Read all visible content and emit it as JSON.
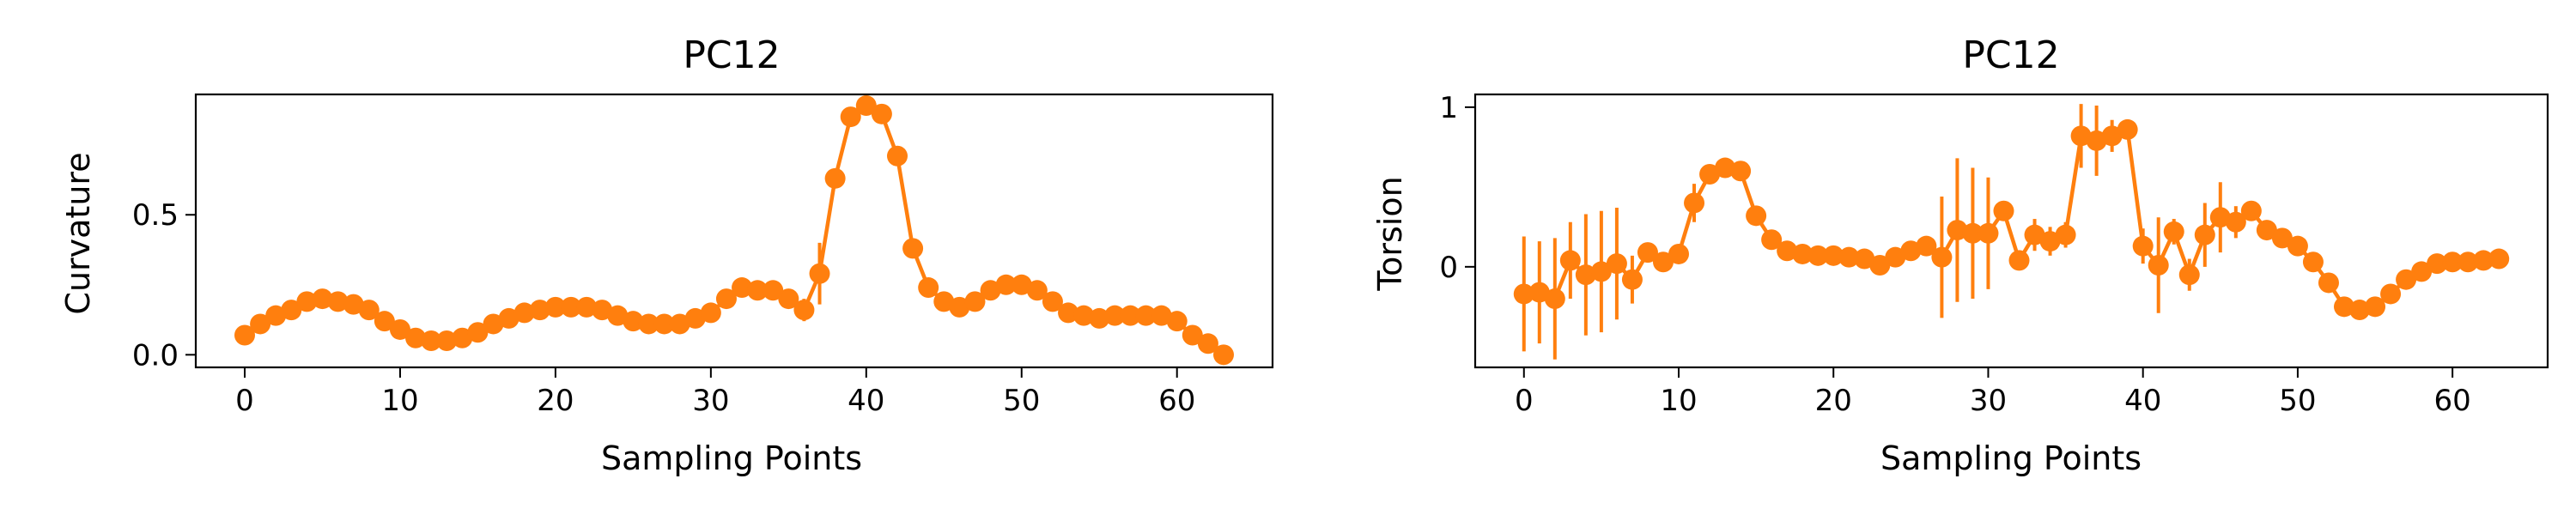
{
  "colors": {
    "series": "#ff7f0e",
    "axes": "#000000",
    "background": "#ffffff"
  },
  "chart_data": [
    {
      "type": "line",
      "title": "PC12",
      "xlabel": "Sampling Points",
      "ylabel": "Curvature",
      "xlim": [
        -3.15,
        66.15
      ],
      "ylim": [
        -0.045,
        0.93
      ],
      "xticks": [
        0,
        10,
        20,
        30,
        40,
        50,
        60
      ],
      "yticks": [
        0.0,
        0.5
      ],
      "ytick_labels": [
        "0.0",
        "0.5"
      ],
      "grid": false,
      "marker": "circle",
      "x": [
        0,
        1,
        2,
        3,
        4,
        5,
        6,
        7,
        8,
        9,
        10,
        11,
        12,
        13,
        14,
        15,
        16,
        17,
        18,
        19,
        20,
        21,
        22,
        23,
        24,
        25,
        26,
        27,
        28,
        29,
        30,
        31,
        32,
        33,
        34,
        35,
        36,
        37,
        38,
        39,
        40,
        41,
        42,
        43,
        44,
        45,
        46,
        47,
        48,
        49,
        50,
        51,
        52,
        53,
        54,
        55,
        56,
        57,
        58,
        59,
        60,
        61,
        62,
        63
      ],
      "y": [
        0.07,
        0.11,
        0.14,
        0.16,
        0.19,
        0.2,
        0.19,
        0.18,
        0.16,
        0.12,
        0.09,
        0.06,
        0.05,
        0.05,
        0.06,
        0.08,
        0.11,
        0.13,
        0.15,
        0.16,
        0.17,
        0.17,
        0.17,
        0.16,
        0.14,
        0.12,
        0.11,
        0.11,
        0.11,
        0.13,
        0.15,
        0.2,
        0.24,
        0.23,
        0.23,
        0.2,
        0.16,
        0.29,
        0.63,
        0.85,
        0.89,
        0.86,
        0.71,
        0.38,
        0.24,
        0.19,
        0.17,
        0.19,
        0.23,
        0.25,
        0.25,
        0.23,
        0.19,
        0.15,
        0.14,
        0.13,
        0.14,
        0.14,
        0.14,
        0.14,
        0.12,
        0.07,
        0.04,
        0.0
      ],
      "yerr": [
        0.01,
        0.01,
        0.01,
        0.01,
        0.01,
        0.01,
        0.01,
        0.01,
        0.01,
        0.01,
        0.01,
        0.01,
        0.01,
        0.01,
        0.01,
        0.01,
        0.01,
        0.01,
        0.01,
        0.01,
        0.01,
        0.01,
        0.01,
        0.01,
        0.01,
        0.01,
        0.01,
        0.01,
        0.01,
        0.01,
        0.01,
        0.01,
        0.02,
        0.02,
        0.02,
        0.02,
        0.04,
        0.11,
        0.03,
        0.03,
        0.02,
        0.03,
        0.02,
        0.02,
        0.02,
        0.02,
        0.02,
        0.02,
        0.02,
        0.02,
        0.02,
        0.02,
        0.02,
        0.01,
        0.01,
        0.01,
        0.01,
        0.02,
        0.02,
        0.02,
        0.01,
        0.01,
        0.01,
        0.01
      ]
    },
    {
      "type": "line",
      "title": "PC12",
      "xlabel": "Sampling Points",
      "ylabel": "Torsion",
      "xlim": [
        -3.15,
        66.15
      ],
      "ylim": [
        -0.63,
        1.08
      ],
      "xticks": [
        0,
        10,
        20,
        30,
        40,
        50,
        60
      ],
      "yticks": [
        0,
        1
      ],
      "ytick_labels": [
        "0",
        "1"
      ],
      "grid": false,
      "marker": "circle",
      "x": [
        0,
        1,
        2,
        3,
        4,
        5,
        6,
        7,
        8,
        9,
        10,
        11,
        12,
        13,
        14,
        15,
        16,
        17,
        18,
        19,
        20,
        21,
        22,
        23,
        24,
        25,
        26,
        27,
        28,
        29,
        30,
        31,
        32,
        33,
        34,
        35,
        36,
        37,
        38,
        39,
        40,
        41,
        42,
        43,
        44,
        45,
        46,
        47,
        48,
        49,
        50,
        51,
        52,
        53,
        54,
        55,
        56,
        57,
        58,
        59,
        60,
        61,
        62,
        63
      ],
      "y": [
        -0.17,
        -0.16,
        -0.2,
        0.04,
        -0.05,
        -0.03,
        0.02,
        -0.08,
        0.09,
        0.03,
        0.08,
        0.4,
        0.58,
        0.62,
        0.6,
        0.32,
        0.17,
        0.1,
        0.08,
        0.07,
        0.07,
        0.06,
        0.05,
        0.01,
        0.06,
        0.1,
        0.13,
        0.06,
        0.23,
        0.21,
        0.21,
        0.35,
        0.04,
        0.2,
        0.16,
        0.2,
        0.82,
        0.79,
        0.82,
        0.86,
        0.13,
        0.01,
        0.22,
        -0.05,
        0.2,
        0.31,
        0.28,
        0.35,
        0.23,
        0.18,
        0.13,
        0.03,
        -0.1,
        -0.25,
        -0.27,
        -0.25,
        -0.17,
        -0.08,
        -0.03,
        0.02,
        0.03,
        0.03,
        0.04,
        0.05
      ],
      "yerr": [
        0.36,
        0.32,
        0.38,
        0.24,
        0.38,
        0.38,
        0.35,
        0.15,
        0.05,
        0.02,
        0.04,
        0.12,
        0.04,
        0.03,
        0.03,
        0.02,
        0.02,
        0.02,
        0.02,
        0.02,
        0.02,
        0.02,
        0.02,
        0.02,
        0.02,
        0.05,
        0.05,
        0.38,
        0.45,
        0.41,
        0.35,
        0.06,
        0.04,
        0.1,
        0.09,
        0.08,
        0.2,
        0.22,
        0.1,
        0.03,
        0.11,
        0.3,
        0.08,
        0.1,
        0.2,
        0.22,
        0.1,
        0.04,
        0.03,
        0.03,
        0.03,
        0.03,
        0.04,
        0.04,
        0.04,
        0.04,
        0.03,
        0.03,
        0.03,
        0.03,
        0.03,
        0.03,
        0.03,
        0.03
      ]
    }
  ]
}
